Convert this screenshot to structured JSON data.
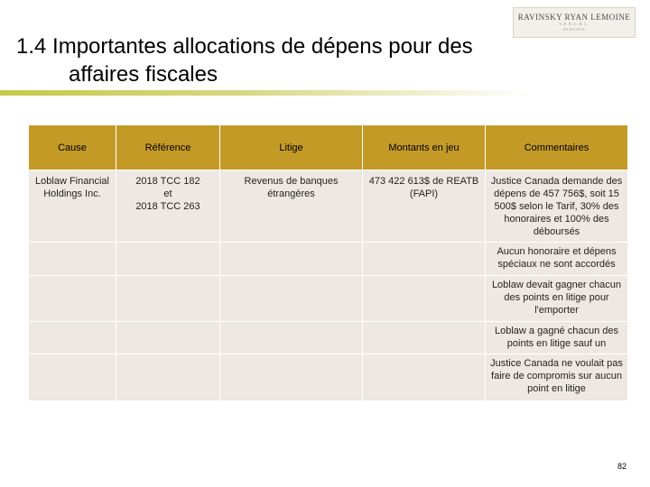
{
  "logo": {
    "name": "RAVINSKY RYAN LEMOINE",
    "sub1": "S.E.N.C.R.L.",
    "sub2": "AVOCATS"
  },
  "title": {
    "line1": "1.4  Importantes allocations de dépens pour des",
    "line2": "affaires fiscales"
  },
  "table": {
    "headers": [
      "Cause",
      "Référence",
      "Litige",
      "Montants en jeu",
      "Commentaires"
    ],
    "rows": [
      [
        "Loblaw Financial Holdings Inc.",
        "2018 TCC 182\net\n2018 TCC 263",
        "Revenus de banques étrangères",
        "473 422 613$ de REATB\n(FAPI)",
        "Justice Canada demande des dépens de 457 756$, soit 15 500$ selon le Tarif, 30% des honoraires et 100% des déboursés"
      ],
      [
        "",
        "",
        "",
        "",
        "Aucun honoraire et dépens spéciaux ne sont accordés"
      ],
      [
        "",
        "",
        "",
        "",
        "Loblaw devait gagner chacun des points en litige pour l'emporter"
      ],
      [
        "",
        "",
        "",
        "",
        "Loblaw a gagné chacun des points en litige sauf un"
      ],
      [
        "",
        "",
        "",
        "",
        "Justice Canada ne voulait pas faire de compromis sur aucun point en litige"
      ]
    ]
  },
  "page_number": "82"
}
